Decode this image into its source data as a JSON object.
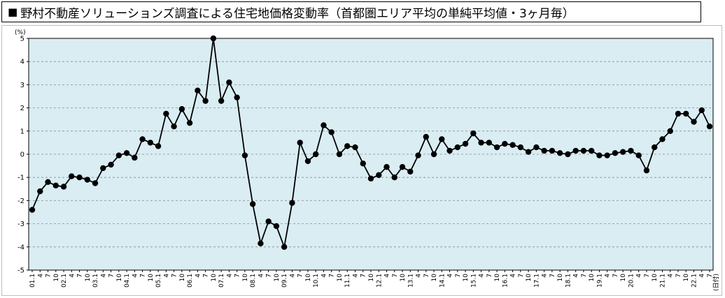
{
  "title": "野村不動産ソリューションズ調査による住宅地価格変動率（首都圏エリア平均の単純平均値・3ヶ月毎）",
  "title_marker": "■",
  "colors": {
    "plot_bg": "#d9edf3",
    "line": "#000000",
    "grid": "#8c8c8c"
  },
  "chart_data": {
    "type": "line",
    "title": "野村不動産ソリューションズ調査による住宅地価格変動率（首都圏エリア平均の単純平均値・3ヶ月毎）",
    "ylabel": "(%)",
    "ylim": [
      -5,
      5
    ],
    "yticks": [
      5,
      4,
      3,
      2,
      1,
      0,
      -1,
      -2,
      -3,
      -4,
      -5
    ],
    "grid": true,
    "x_end_note": "(日付)",
    "categories": [
      "01.1",
      "4",
      "7",
      "10",
      "02.1",
      "4",
      "7",
      "10",
      "03.1",
      "4",
      "7",
      "10",
      "04.1",
      "4",
      "7",
      "10",
      "05.1",
      "4",
      "7",
      "10",
      "06.1",
      "4",
      "7",
      "10",
      "07.1",
      "4",
      "7",
      "10",
      "08.1",
      "4",
      "7",
      "10",
      "09.1",
      "4",
      "7",
      "10",
      "10.1",
      "4",
      "7",
      "10",
      "11.1",
      "4",
      "7",
      "10",
      "12.1",
      "4",
      "7",
      "10",
      "13.1",
      "4",
      "7",
      "10",
      "14.1",
      "4",
      "7",
      "10",
      "15.1",
      "4",
      "7",
      "10",
      "16.1",
      "4",
      "7",
      "10",
      "17.1",
      "4",
      "7",
      "10",
      "18.1",
      "4",
      "7",
      "10",
      "19.1",
      "4",
      "7",
      "10",
      "20.1",
      "4",
      "7",
      "10",
      "21.1",
      "4",
      "7",
      "10",
      "22.1",
      "4",
      "7"
    ],
    "series": [
      {
        "values": [
          -2.4,
          -1.6,
          -1.2,
          -1.35,
          -1.4,
          -0.95,
          -1.0,
          -1.1,
          -1.25,
          -0.6,
          -0.45,
          -0.05,
          0.05,
          -0.15,
          0.65,
          0.5,
          0.35,
          1.75,
          1.2,
          1.95,
          1.35,
          2.75,
          2.3,
          5.0,
          2.3,
          3.1,
          2.45,
          -0.05,
          -2.15,
          -3.85,
          -2.9,
          -3.1,
          -4.0,
          -2.1,
          0.5,
          -0.3,
          0.0,
          1.25,
          0.95,
          0.0,
          0.35,
          0.3,
          -0.4,
          -1.05,
          -0.9,
          -0.55,
          -1.0,
          -0.55,
          -0.75,
          -0.05,
          0.75,
          0.0,
          0.65,
          0.15,
          0.3,
          0.45,
          0.9,
          0.5,
          0.5,
          0.3,
          0.45,
          0.4,
          0.3,
          0.1,
          0.3,
          0.15,
          0.15,
          0.05,
          0.0,
          0.15,
          0.15,
          0.15,
          -0.05,
          -0.05,
          0.05,
          0.1,
          0.15,
          -0.05,
          -0.7,
          0.3,
          0.65,
          1.0,
          1.75,
          1.75,
          1.4,
          1.9,
          1.2
        ]
      }
    ]
  }
}
